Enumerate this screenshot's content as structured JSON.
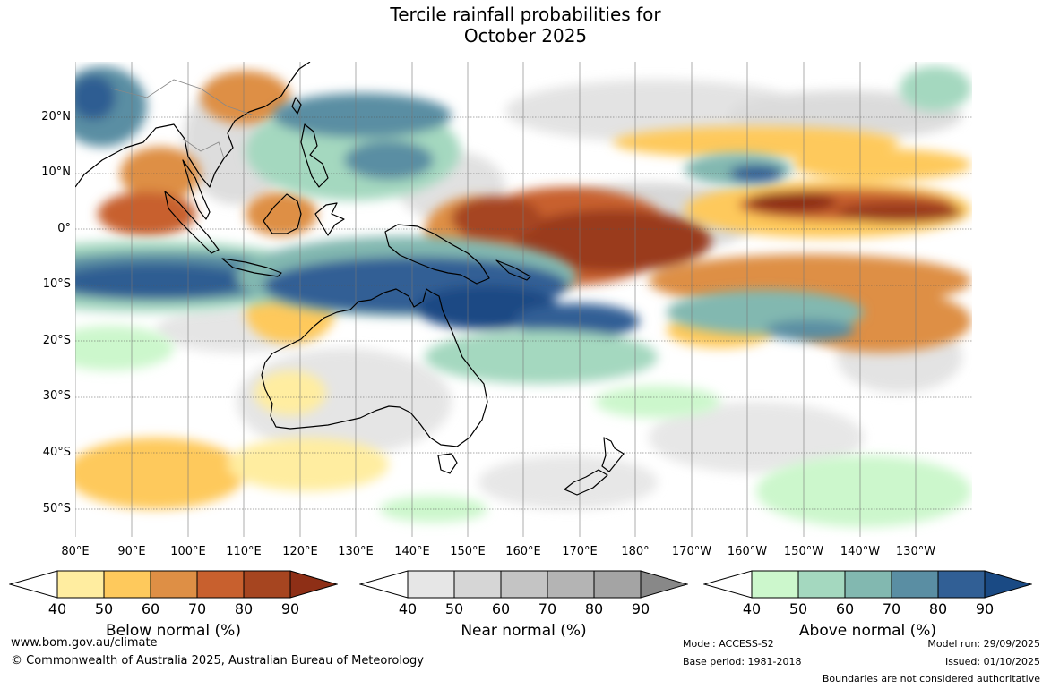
{
  "title_line1": "Tercile rainfall probabilities for",
  "title_line2": "October 2025",
  "lat_labels": [
    "20°N",
    "10°N",
    "0°",
    "10°S",
    "20°S",
    "30°S",
    "40°S",
    "50°S"
  ],
  "lon_labels": [
    "80°E",
    "90°E",
    "100°E",
    "110°E",
    "120°E",
    "130°E",
    "140°E",
    "150°E",
    "160°E",
    "170°E",
    "180°",
    "170°W",
    "160°W",
    "150°W",
    "140°W",
    "130°W"
  ],
  "legends": [
    {
      "title": "Below normal (%)",
      "ticks": [
        "40",
        "50",
        "60",
        "70",
        "80",
        "90"
      ],
      "colors": [
        "#ffffff",
        "#ffeda0",
        "#fec95c",
        "#de8f45",
        "#c8602e",
        "#a64520",
        "#8e2f16"
      ]
    },
    {
      "title": "Near normal (%)",
      "ticks": [
        "40",
        "50",
        "60",
        "70",
        "80",
        "90"
      ],
      "colors": [
        "#ffffff",
        "#e6e6e6",
        "#d6d6d6",
        "#c4c4c4",
        "#b4b4b4",
        "#a4a4a4",
        "#888888"
      ]
    },
    {
      "title": "Above normal (%)",
      "ticks": [
        "40",
        "50",
        "60",
        "70",
        "80",
        "90"
      ],
      "colors": [
        "#ffffff",
        "#ccf7cc",
        "#a4d8bf",
        "#82b8b0",
        "#5a8ea3",
        "#315f95",
        "#1a4a84"
      ]
    }
  ],
  "footer": {
    "website": "www.bom.gov.au/climate",
    "copyright": "© Commonwealth of Australia 2025, Australian Bureau of Meteorology",
    "model": "Model: ACCESS-S2",
    "base_period": "Base period: 1981-2018",
    "model_run": "Model run: 29/09/2025",
    "issued": "Issued: 01/10/2025",
    "disclaimer": "Boundaries are not considered authoritative"
  }
}
